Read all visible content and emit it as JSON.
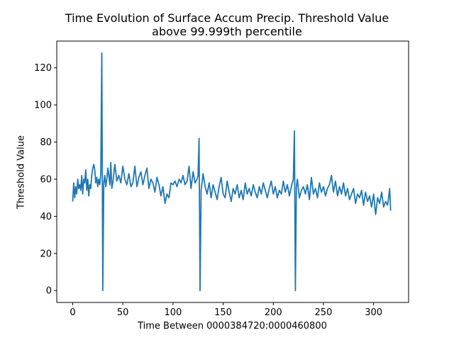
{
  "chart_data": {
    "type": "line",
    "title_line1": "Time Evolution of Surface Accum Precip. Threshold Value",
    "title_line2": "above 99.999th percentile",
    "xlabel": "Time Between 0000384720:0000460800",
    "ylabel": "Threshold Value",
    "xlim": [
      -15.9,
      334.9
    ],
    "ylim": [
      -6.4,
      134.4
    ],
    "xticks": [
      0,
      50,
      100,
      150,
      200,
      250,
      300
    ],
    "yticks": [
      0,
      20,
      40,
      60,
      80,
      100,
      120
    ],
    "grid": false,
    "color": "#1f77b4",
    "series": [
      {
        "x": [
          0,
          1,
          2,
          3,
          4,
          5,
          6,
          7,
          8,
          9,
          10,
          11,
          12,
          13,
          14,
          15,
          16,
          17,
          18,
          19,
          20,
          21,
          22,
          23,
          24,
          25,
          26,
          27,
          28,
          29,
          30,
          31,
          32,
          33,
          34,
          35,
          36,
          37,
          38,
          39,
          40,
          42,
          44,
          46,
          48,
          50,
          52,
          54,
          56,
          58,
          60,
          62,
          64,
          66,
          68,
          70,
          72,
          74,
          76,
          78,
          80,
          82,
          84,
          86,
          88,
          90,
          92,
          94,
          96,
          98,
          100,
          102,
          104,
          106,
          108,
          110,
          112,
          114,
          116,
          118,
          120,
          122,
          124,
          125,
          126,
          127,
          128,
          130,
          132,
          134,
          136,
          138,
          140,
          142,
          144,
          146,
          148,
          150,
          152,
          154,
          156,
          158,
          160,
          162,
          164,
          166,
          168,
          170,
          172,
          174,
          176,
          178,
          180,
          182,
          184,
          186,
          188,
          190,
          192,
          194,
          196,
          198,
          200,
          202,
          204,
          206,
          208,
          210,
          212,
          214,
          216,
          218,
          220,
          221,
          222,
          223,
          224,
          226,
          228,
          230,
          232,
          234,
          236,
          238,
          240,
          242,
          244,
          246,
          248,
          250,
          252,
          254,
          256,
          258,
          260,
          262,
          264,
          266,
          268,
          270,
          272,
          274,
          276,
          278,
          280,
          282,
          284,
          286,
          288,
          290,
          292,
          294,
          296,
          298,
          300,
          302,
          304,
          306,
          308,
          310,
          312,
          314,
          316,
          317
        ],
        "y": [
          48,
          58,
          50,
          56,
          52,
          60,
          55,
          57,
          54,
          62,
          52,
          60,
          58,
          65,
          54,
          60,
          51,
          57,
          55,
          62,
          66,
          68,
          65,
          58,
          61,
          56,
          60,
          57,
          63,
          128,
          0,
          58,
          62,
          56,
          60,
          66,
          62,
          57,
          69,
          55,
          58,
          68,
          59,
          62,
          58,
          67,
          60,
          57,
          63,
          56,
          58,
          67,
          56,
          61,
          64,
          57,
          62,
          66,
          55,
          60,
          58,
          53,
          61,
          57,
          51,
          56,
          47,
          52,
          50,
          58,
          57,
          59,
          56,
          60,
          58,
          62,
          57,
          59,
          67,
          55,
          64,
          58,
          60,
          62,
          82,
          0,
          54,
          63,
          56,
          52,
          58,
          50,
          57,
          53,
          49,
          56,
          61,
          52,
          50,
          59,
          53,
          48,
          55,
          52,
          57,
          50,
          54,
          49,
          58,
          52,
          55,
          51,
          57,
          53,
          50,
          56,
          52,
          58,
          54,
          50,
          55,
          59,
          52,
          56,
          50,
          54,
          52,
          59,
          53,
          57,
          51,
          56,
          60,
          86,
          0,
          56,
          60,
          50,
          54,
          56,
          52,
          57,
          49,
          61,
          52,
          55,
          50,
          58,
          53,
          56,
          51,
          55,
          57,
          62,
          53,
          59,
          51,
          56,
          52,
          58,
          51,
          55,
          49,
          52,
          55,
          47,
          52,
          50,
          54,
          46,
          53,
          48,
          51,
          45,
          52,
          41,
          50,
          47,
          53,
          45,
          48,
          46,
          55,
          43
        ]
      }
    ]
  }
}
